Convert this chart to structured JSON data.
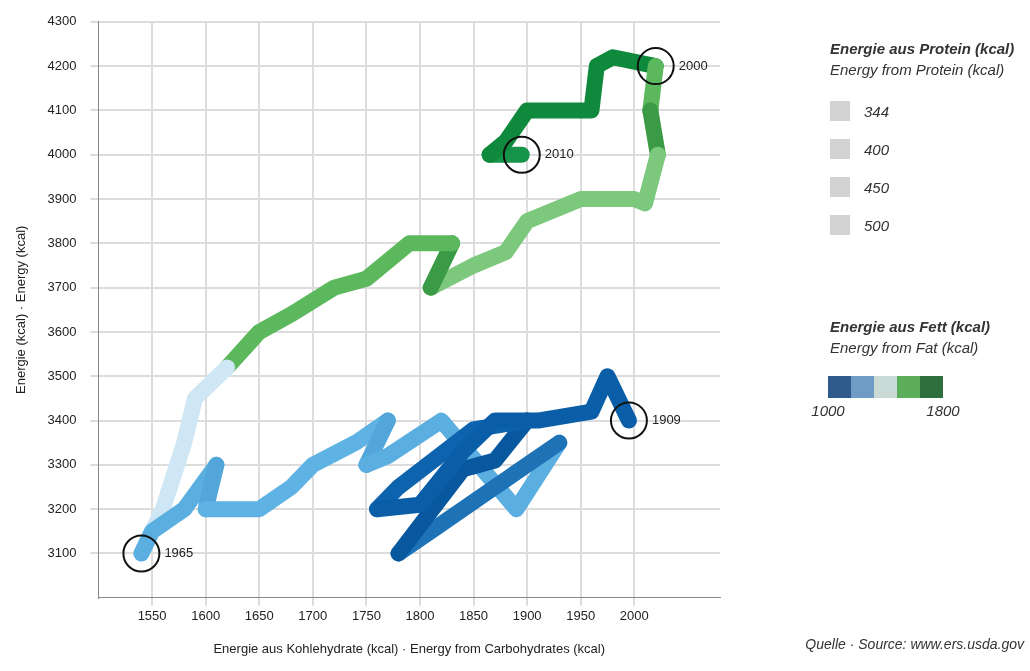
{
  "chart_data": {
    "type": "line",
    "xlabel": "Energie aus Kohlehydrate (kcal) · Energy from Carbohydrates (kcal)",
    "ylabel": "Energie (kcal) · Energy (kcal)",
    "series": [
      {
        "color": "#0a5ea8",
        "x": [
          1995,
          1975,
          1960,
          1910,
          1870,
          1840,
          1800,
          1760
        ],
        "values": [
          3400,
          3500,
          3420,
          3400,
          3400,
          3330,
          3210,
          3200
        ]
      },
      {
        "color": "#0d63ae",
        "x": [
          1760,
          1780,
          1850,
          1900
        ],
        "values": [
          3200,
          3250,
          3380,
          3400
        ]
      },
      {
        "color": "#0858a0",
        "x": [
          1900,
          1870,
          1840,
          1780
        ],
        "values": [
          3400,
          3310,
          3290,
          3100
        ]
      },
      {
        "color": "#1e72b6",
        "x": [
          1780,
          1810,
          1870,
          1930
        ],
        "values": [
          3100,
          3150,
          3250,
          3350
        ]
      },
      {
        "color": "#5aaee0",
        "x": [
          1930,
          1890,
          1820,
          1770,
          1750
        ],
        "values": [
          3350,
          3200,
          3400,
          3320,
          3300
        ]
      },
      {
        "color": "#52a6da",
        "x": [
          1750,
          1770
        ],
        "values": [
          3300,
          3400
        ]
      },
      {
        "color": "#5eb2e4",
        "x": [
          1770,
          1740,
          1700,
          1680,
          1650,
          1600
        ],
        "values": [
          3400,
          3350,
          3300,
          3250,
          3200,
          3200
        ]
      },
      {
        "color": "#52a6da",
        "x": [
          1600,
          1610
        ],
        "values": [
          3200,
          3300
        ]
      },
      {
        "color": "#5aaee0",
        "x": [
          1610,
          1580,
          1550,
          1540
        ],
        "values": [
          3300,
          3200,
          3150,
          3100
        ]
      },
      {
        "color": "#cfe6f4",
        "x": [
          1540,
          1560,
          1580,
          1590,
          1620
        ],
        "values": [
          3100,
          3200,
          3350,
          3450,
          3520
        ]
      },
      {
        "color": "#5cb85c",
        "x": [
          1620,
          1650,
          1680,
          1720,
          1750,
          1790,
          1830
        ],
        "values": [
          3520,
          3600,
          3640,
          3700,
          3720,
          3800,
          3800
        ]
      },
      {
        "color": "#3a9a46",
        "x": [
          1830,
          1810
        ],
        "values": [
          3800,
          3700
        ]
      },
      {
        "color": "#7cc87c",
        "x": [
          1810,
          1850,
          1880,
          1900,
          1950,
          2000,
          2010,
          2022
        ],
        "values": [
          3700,
          3750,
          3780,
          3850,
          3900,
          3900,
          3890,
          4000
        ]
      },
      {
        "color": "#3a9a46",
        "x": [
          2022,
          2015
        ],
        "values": [
          4000,
          4100
        ]
      },
      {
        "color": "#5cb85c",
        "x": [
          2015,
          2020
        ],
        "values": [
          4100,
          4200
        ]
      },
      {
        "color": "#0f8a3c",
        "x": [
          2020,
          1980,
          1965,
          1960,
          1930,
          1900,
          1880,
          1865
        ],
        "values": [
          4200,
          4220,
          4200,
          4100,
          4100,
          4100,
          4030,
          4000
        ]
      },
      {
        "color": "#16944a",
        "x": [
          1865,
          1895
        ],
        "values": [
          4000,
          4000
        ]
      }
    ],
    "xlim": [
      1500,
      2080
    ],
    "xticks": [
      1550,
      1600,
      1650,
      1700,
      1750,
      1800,
      1850,
      1900,
      1950,
      2000
    ],
    "ylim": [
      3000,
      4300
    ],
    "yticks": [
      3100,
      3200,
      3300,
      3400,
      3500,
      3600,
      3700,
      3800,
      3900,
      4000,
      4100,
      4200,
      4300
    ],
    "grid": true,
    "legend_title": "Energie aus Protein (kcal)\nEnergy from Protein (kcal)",
    "clabel": "Energie aus Fett (kcal)\nEnergy from Fat (kcal)",
    "clim": [
      1000,
      1800
    ],
    "cticks": [
      1000,
      1800
    ],
    "annotations": [
      {
        "text": "1909",
        "x": 1995,
        "y": 3400
      },
      {
        "text": "1965",
        "x": 1540,
        "y": 3100
      },
      {
        "text": "2000",
        "x": 2020,
        "y": 4200
      },
      {
        "text": "2010",
        "x": 1895,
        "y": 4000
      },
      "344",
      "400",
      "450",
      "500",
      "Quelle · Source: www.ers.usda.gov"
    ]
  }
}
